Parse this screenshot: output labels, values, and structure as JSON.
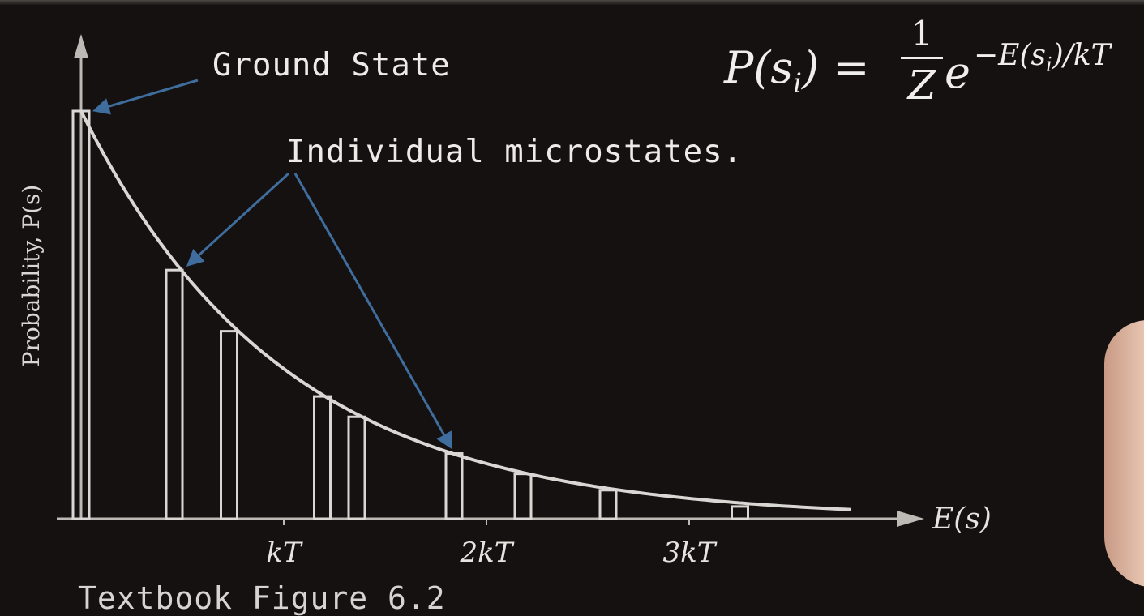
{
  "chart_data": {
    "type": "bar",
    "title": "",
    "xlabel": "E(s)",
    "ylabel": "Probability, P(s)",
    "xlim": [
      0,
      3.9
    ],
    "ylim": [
      0,
      1
    ],
    "x_ticks": [
      {
        "value": 1,
        "label": "kT"
      },
      {
        "value": 2,
        "label": "2kT"
      },
      {
        "value": 3,
        "label": "3kT"
      }
    ],
    "microstates": {
      "energies": [
        0,
        0.46,
        0.73,
        1.19,
        1.36,
        1.84,
        2.18,
        2.6,
        3.25
      ],
      "probabilities": [
        1.0,
        0.61,
        0.46,
        0.3,
        0.25,
        0.16,
        0.11,
        0.07,
        0.03
      ]
    },
    "curve": {
      "function": "exp(-E/kT)",
      "from": 0,
      "to": 3.8
    }
  },
  "annotations": {
    "ground_state": "Ground State",
    "individual_microstates": "Individual microstates."
  },
  "formula": {
    "lhs": "P(s",
    "lhs_sub": "i",
    "lhs_close": ") =",
    "numerator": "1",
    "denominator": "Z",
    "base": "e",
    "exponent": "−E(s",
    "exponent_sub": "i",
    "exponent_close": ")/kT"
  },
  "footer_text_cutoff": "Textbook Figure 6.2",
  "colors": {
    "background": "#151110",
    "chart_lines": "#d9d7d3",
    "arrow": "#3f6e9e",
    "text": "#ecebe8"
  }
}
